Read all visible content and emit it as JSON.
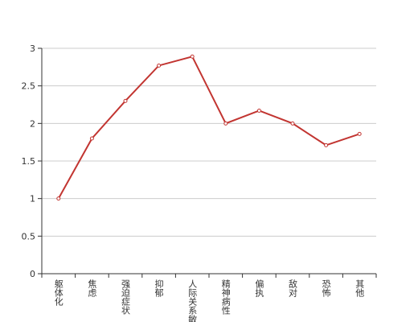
{
  "chart_data": {
    "type": "line",
    "categories": [
      "躯体化",
      "焦虑",
      "强迫症状",
      "抑郁",
      "人际关系敏感",
      "精神病性",
      "偏执",
      "敌对",
      "恐怖",
      "其他"
    ],
    "values": [
      1,
      1.8,
      2.3,
      2.77,
      2.89,
      2,
      2.17,
      2,
      1.71,
      1.86
    ],
    "color": "#c23531",
    "ylim": [
      0,
      3
    ],
    "yticks": [
      0,
      0.5,
      1,
      1.5,
      2,
      2.5,
      3
    ],
    "grid": true
  }
}
